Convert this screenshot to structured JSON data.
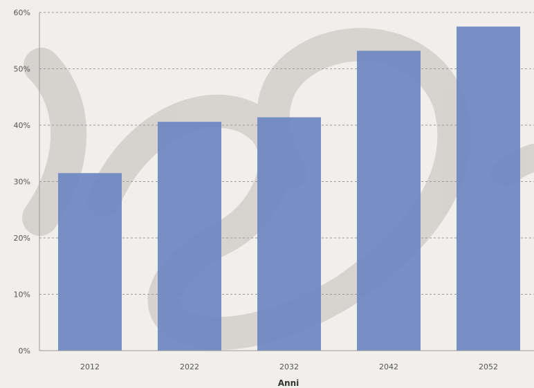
{
  "chart_data": {
    "type": "bar",
    "categories": [
      "2012",
      "2022",
      "2032",
      "2042",
      "2052"
    ],
    "values": [
      31.5,
      40.6,
      41.4,
      53.2,
      57.5
    ],
    "xlabel": "Anni",
    "ylabel": "",
    "ylim": [
      0,
      60
    ],
    "ytick_values": [
      0,
      10,
      20,
      30,
      40,
      50,
      60
    ],
    "ytick_labels": [
      "0%",
      "10%",
      "20%",
      "30%",
      "40%",
      "50%",
      "60%"
    ],
    "grid": true,
    "colors": {
      "bar": "#6f88c2",
      "background": "#f1efec",
      "grid": "#9a9a9a",
      "watermark": "#d4d0cc"
    }
  }
}
